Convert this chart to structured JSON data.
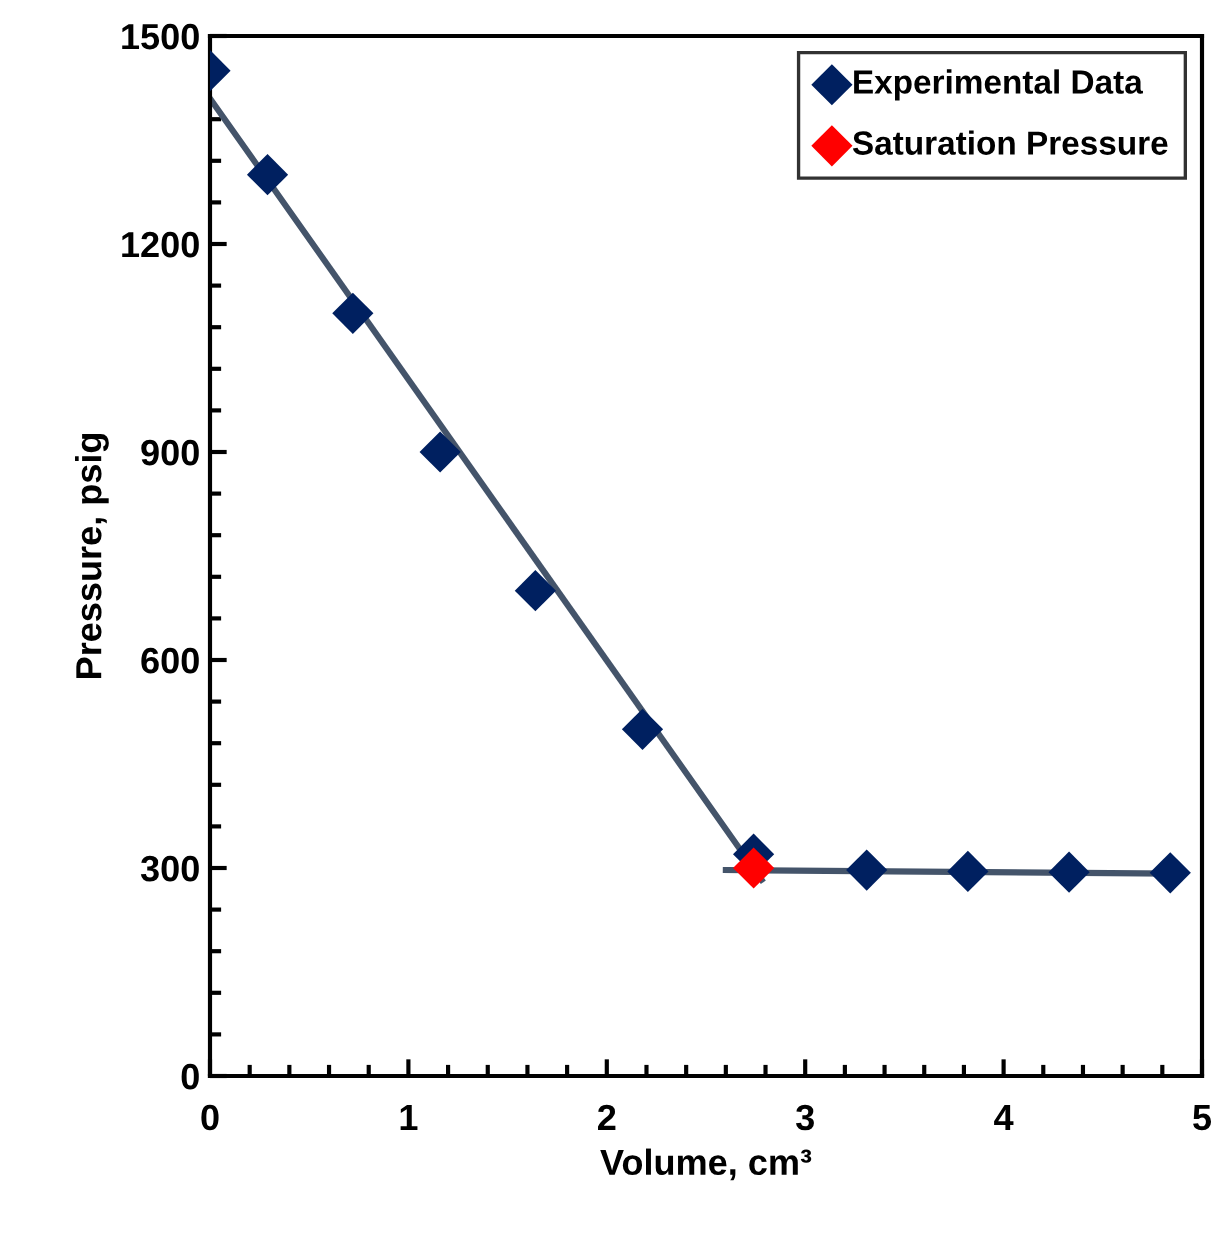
{
  "chart_data": {
    "type": "scatter",
    "xlabel": "Volume, cm³",
    "ylabel": "Pressure, psig",
    "xlim": [
      0,
      5
    ],
    "xticks": [
      0,
      1,
      2,
      3,
      4,
      5
    ],
    "ylim": [
      0,
      1500
    ],
    "yticks": [
      0,
      300,
      600,
      900,
      1200,
      1500
    ],
    "grid": false,
    "legend": "top right",
    "marker": "diamond",
    "series": [
      {
        "type": "line",
        "color": "#44546a",
        "x": [
          0,
          2.78
        ],
        "values": [
          1410,
          283
        ],
        "marker": "none"
      },
      {
        "type": "line",
        "color": "#44546a",
        "x": [
          2.6,
          4.84
        ],
        "values": [
          297,
          292
        ],
        "marker": "none"
      },
      {
        "name": "Experimental Data",
        "color": "#002060",
        "x": [
          0,
          0.29,
          0.72,
          1.16,
          1.64,
          2.18,
          2.74,
          3.31,
          3.82,
          4.33,
          4.84
        ],
        "values": [
          1450,
          1300,
          1100,
          900,
          700,
          500,
          320,
          297,
          295,
          294,
          293
        ]
      },
      {
        "name": "Saturation Pressure",
        "color": "#ff0000",
        "x": [
          2.74
        ],
        "values": [
          300
        ]
      }
    ]
  }
}
